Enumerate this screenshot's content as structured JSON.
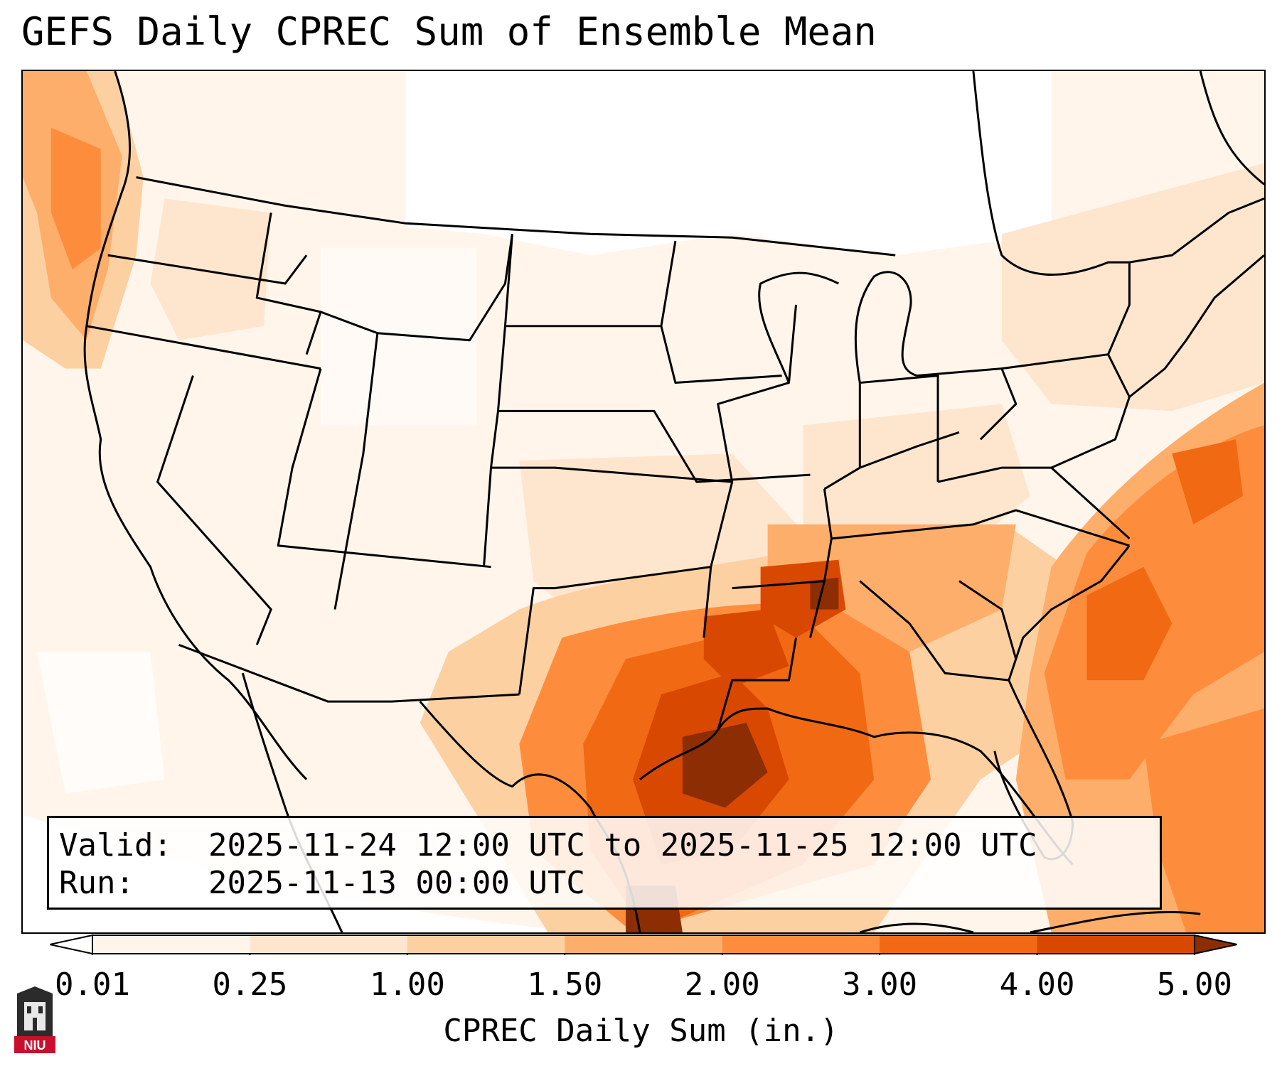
{
  "title": "GEFS Daily CPREC Sum of Ensemble Mean",
  "info": {
    "valid_label": "Valid:",
    "valid_value": "2025-11-24 12:00 UTC to 2025-11-25 12:00 UTC",
    "run_label": "Run:",
    "run_value": "2025-11-13 00:00 UTC"
  },
  "colorbar": {
    "label": "CPREC Daily Sum (in.)",
    "ticks": [
      "0.01",
      "0.25",
      "1.00",
      "1.50",
      "2.00",
      "3.00",
      "4.00",
      "5.00"
    ],
    "colors": [
      "#fff5eb",
      "#fee6ce",
      "#fdd0a2",
      "#fdae6b",
      "#fd8d3c",
      "#f16913",
      "#d94801",
      "#8c2d04"
    ],
    "under_color": "#ffffff",
    "over_color": "#8c2d04"
  },
  "logo": {
    "text": "NIU",
    "color": "#c8102e"
  }
}
